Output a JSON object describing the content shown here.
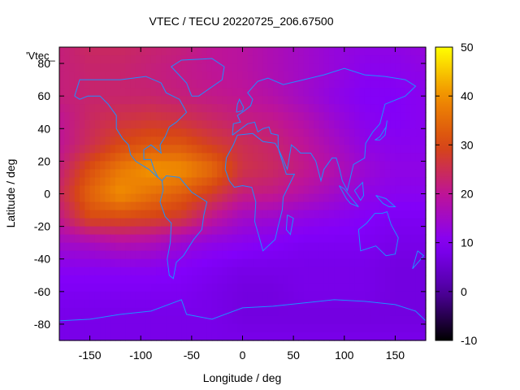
{
  "chart_data": {
    "type": "heatmap",
    "title": "VTEC / TECU 20220725_206.67500",
    "xlabel": "Longitude / deg",
    "ylabel": "Latitude / deg",
    "series_key": "'Vtec_",
    "xlim": [
      -180,
      180
    ],
    "ylim": [
      -90,
      90
    ],
    "x_ticks": [
      -150,
      -100,
      -50,
      0,
      50,
      100,
      150
    ],
    "y_ticks": [
      -80,
      -60,
      -40,
      -20,
      0,
      20,
      40,
      60,
      80
    ],
    "colorbar": {
      "range": [
        -10,
        50
      ],
      "ticks": [
        -10,
        0,
        10,
        20,
        30,
        40,
        50
      ]
    },
    "lon": [
      -180,
      -150,
      -120,
      -90,
      -60,
      -30,
      0,
      30,
      60,
      90,
      120,
      150,
      180
    ],
    "lat": [
      90,
      75,
      60,
      45,
      30,
      15,
      0,
      -15,
      -30,
      -45,
      -60,
      -75,
      -90
    ],
    "vtec": [
      [
        22,
        24,
        24,
        23,
        22,
        20,
        19,
        17,
        15,
        13,
        12,
        12,
        13
      ],
      [
        22,
        23,
        23,
        22,
        21,
        20,
        19,
        17,
        15,
        13,
        11,
        11,
        12
      ],
      [
        22,
        23,
        23,
        23,
        22,
        21,
        20,
        18,
        15,
        12,
        10,
        10,
        11
      ],
      [
        20,
        24,
        26,
        27,
        26,
        24,
        22,
        21,
        18,
        14,
        11,
        10,
        11
      ],
      [
        20,
        25,
        30,
        32,
        32,
        28,
        25,
        23,
        20,
        16,
        12,
        11,
        11
      ],
      [
        22,
        31,
        37,
        41,
        40,
        35,
        26,
        24,
        21,
        18,
        14,
        12,
        12
      ],
      [
        24,
        34,
        40,
        36,
        33,
        28,
        22,
        21,
        18,
        15,
        12,
        11,
        11
      ],
      [
        21,
        30,
        30,
        29,
        27,
        20,
        15,
        14,
        12,
        11,
        10,
        9,
        9
      ],
      [
        15,
        16,
        18,
        17,
        14,
        12,
        11,
        10,
        9,
        9,
        9,
        8,
        8
      ],
      [
        11,
        11,
        11,
        11,
        10,
        9,
        8,
        8,
        8,
        8,
        8,
        7,
        7
      ],
      [
        9,
        9,
        9,
        9,
        9,
        8,
        7,
        7,
        8,
        8,
        8,
        7,
        7
      ],
      [
        8,
        8,
        8,
        8,
        8,
        8,
        7,
        7,
        7,
        7,
        7,
        7,
        7
      ],
      [
        8,
        8,
        8,
        8,
        8,
        8,
        8,
        8,
        8,
        8,
        8,
        8,
        8
      ]
    ],
    "overlay": "coastlines",
    "coastline_color": "#1e90ff"
  }
}
